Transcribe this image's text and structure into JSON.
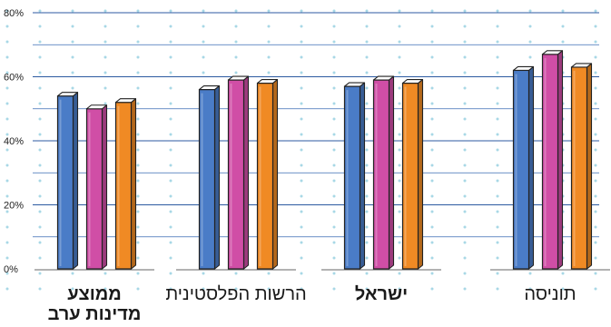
{
  "chart_data": {
    "type": "bar",
    "title": "",
    "xlabel": "",
    "ylabel": "",
    "ylim": [
      0,
      80
    ],
    "y_ticks": [
      "0%",
      "20%",
      "40%",
      "60%",
      "80%"
    ],
    "y_tick_values": [
      0,
      20,
      40,
      60,
      80
    ],
    "grid": true,
    "categories": [
      {
        "lines": [
          "ממוצע",
          "מדינות ערב"
        ],
        "bold": true
      },
      {
        "lines": [
          "הרשות הפלסטינית"
        ],
        "bold": false
      },
      {
        "lines": [
          "ישראל"
        ],
        "bold": true
      },
      {
        "lines": [
          "תוניסה"
        ],
        "bold": false
      }
    ],
    "series": [
      {
        "color": "#4a7cc7",
        "values": [
          54,
          56,
          57,
          62
        ]
      },
      {
        "color": "#d04ea6",
        "values": [
          50,
          59,
          59,
          67
        ]
      },
      {
        "color": "#f08a24",
        "values": [
          52,
          58,
          58,
          63
        ]
      }
    ]
  }
}
